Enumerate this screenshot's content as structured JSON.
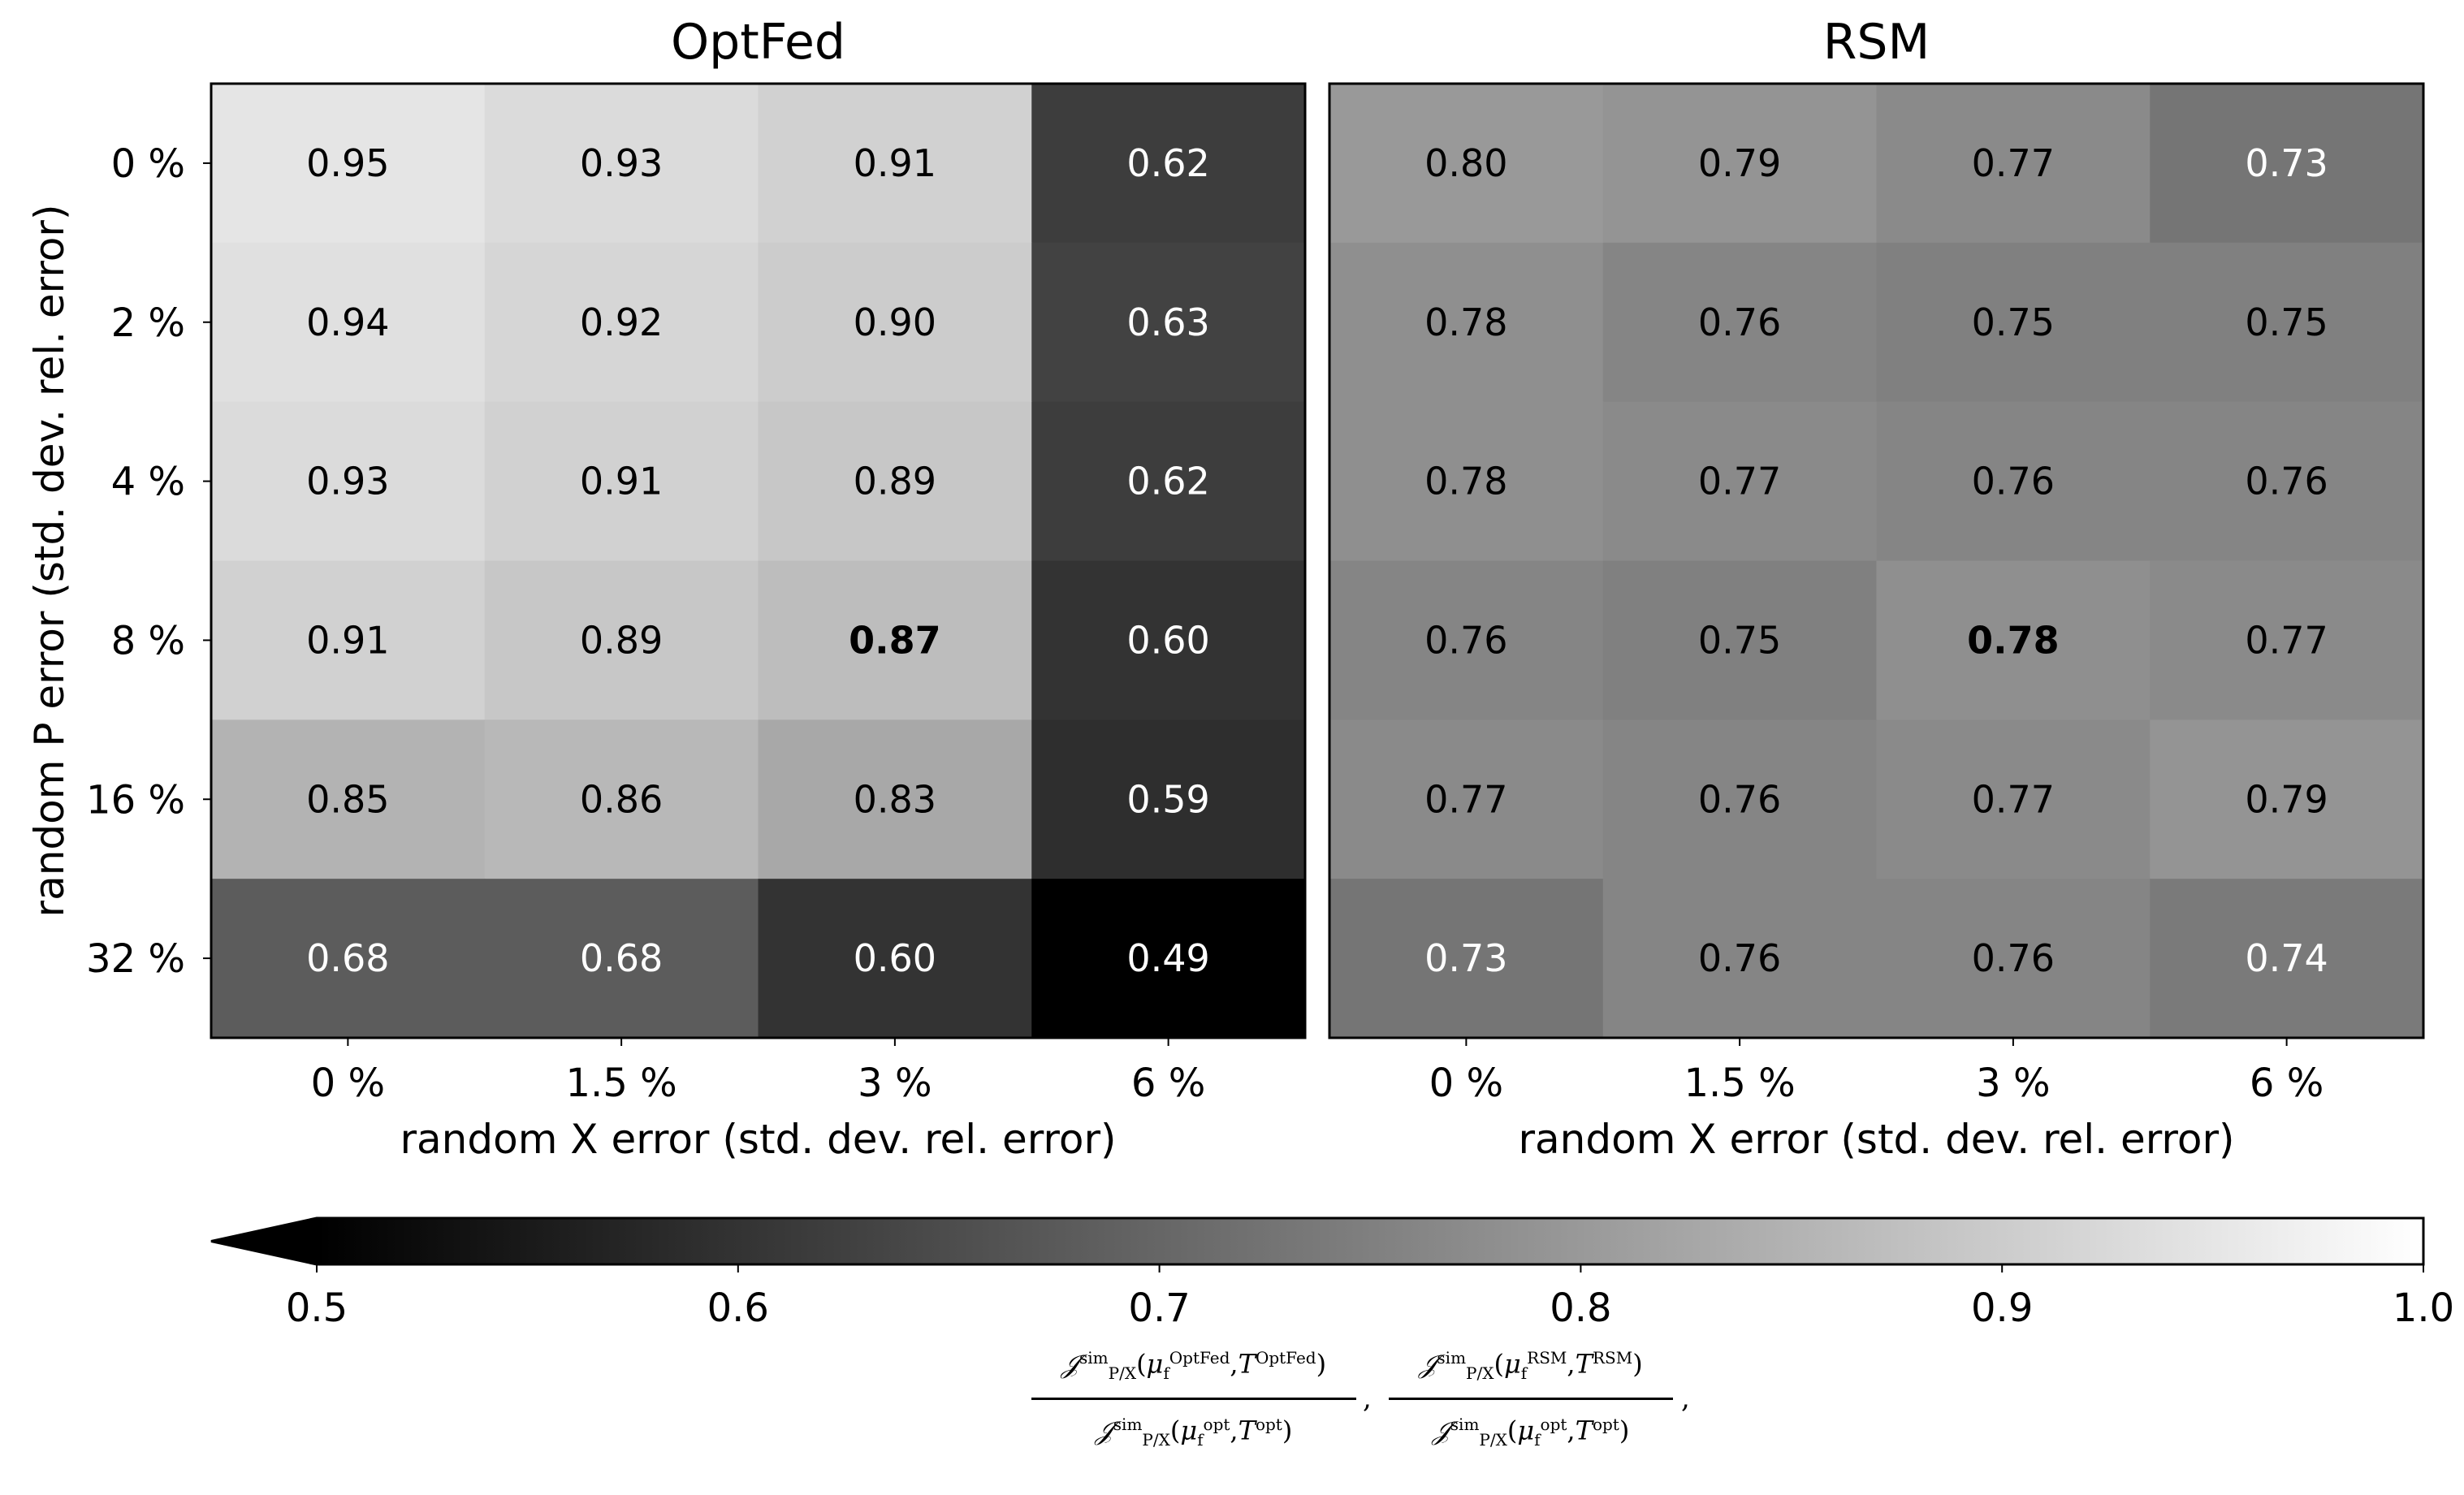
{
  "chart_data": {
    "type": "heatmap",
    "colormap": "gray",
    "color_range": [
      0.5,
      1.0
    ],
    "colorbar_extend": "min",
    "panels": [
      {
        "title": "OptFed",
        "ylabel": "random P error (std. dev. rel. error)",
        "xlabel": "random X error (std. dev. rel. error)",
        "x_categories": [
          "0 %",
          "1.5 %",
          "3 %",
          "6 %"
        ],
        "y_categories": [
          "0 %",
          "2 %",
          "4 %",
          "8 %",
          "16 %",
          "32 %"
        ],
        "values": [
          [
            0.95,
            0.93,
            0.91,
            0.62
          ],
          [
            0.94,
            0.92,
            0.9,
            0.63
          ],
          [
            0.93,
            0.91,
            0.89,
            0.62
          ],
          [
            0.91,
            0.89,
            0.87,
            0.6
          ],
          [
            0.85,
            0.86,
            0.83,
            0.59
          ],
          [
            0.68,
            0.68,
            0.6,
            0.49
          ]
        ],
        "labels": [
          [
            "0.95",
            "0.93",
            "0.91",
            "0.62"
          ],
          [
            "0.94",
            "0.92",
            "0.90",
            "0.63"
          ],
          [
            "0.93",
            "0.91",
            "0.89",
            "0.62"
          ],
          [
            "0.91",
            "0.89",
            "0.87",
            "0.60"
          ],
          [
            "0.85",
            "0.86",
            "0.83",
            "0.59"
          ],
          [
            "0.68",
            "0.68",
            "0.60",
            "0.49"
          ]
        ],
        "highlight": [
          3,
          2
        ]
      },
      {
        "title": "RSM",
        "ylabel": "",
        "xlabel": "random X error (std. dev. rel. error)",
        "x_categories": [
          "0 %",
          "1.5 %",
          "3 %",
          "6 %"
        ],
        "y_categories": [],
        "values": [
          [
            0.8,
            0.79,
            0.77,
            0.73
          ],
          [
            0.78,
            0.76,
            0.75,
            0.75
          ],
          [
            0.78,
            0.77,
            0.76,
            0.76
          ],
          [
            0.76,
            0.75,
            0.78,
            0.77
          ],
          [
            0.77,
            0.76,
            0.77,
            0.79
          ],
          [
            0.73,
            0.76,
            0.76,
            0.74
          ]
        ],
        "labels": [
          [
            "0.80",
            "0.79",
            "0.77",
            "0.73"
          ],
          [
            "0.78",
            "0.76",
            "0.75",
            "0.75"
          ],
          [
            "0.78",
            "0.77",
            "0.76",
            "0.76"
          ],
          [
            "0.76",
            "0.75",
            "0.78",
            "0.77"
          ],
          [
            "0.77",
            "0.76",
            "0.77",
            "0.79"
          ],
          [
            "0.73",
            "0.76",
            "0.76",
            "0.74"
          ]
        ],
        "highlight": [
          3,
          2
        ]
      }
    ],
    "colorbar": {
      "ticks": [
        0.5,
        0.6,
        0.7,
        0.8,
        0.9,
        1.0
      ],
      "tick_labels": [
        "0.5",
        "0.6",
        "0.7",
        "0.8",
        "0.9",
        "1.0"
      ]
    },
    "colorbar_label": {
      "frac1": {
        "num": "J sim P/X ( μ_f OptFed , T OptFed )",
        "den": "J sim P/X ( μ_f opt , T opt )"
      },
      "frac2": {
        "num": "J sim P/X ( μ_f RSM , T RSM )",
        "den": "J sim P/X ( μ_f opt , T opt )"
      },
      "separator": ",",
      "terminal": ","
    }
  }
}
